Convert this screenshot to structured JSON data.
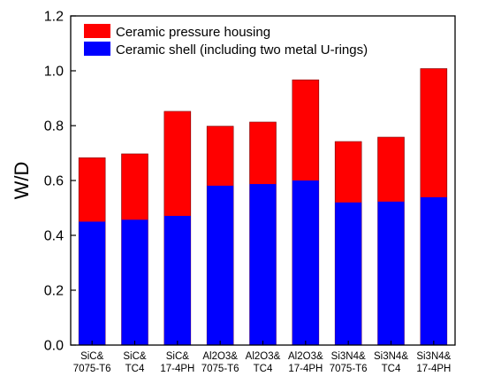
{
  "chart_data": {
    "type": "bar",
    "stacked": false,
    "overlay": true,
    "categories": [
      [
        "SiC&",
        "7075-T6"
      ],
      [
        "SiC&",
        "TC4"
      ],
      [
        "SiC&",
        "17-4PH"
      ],
      [
        "Al2O3&",
        "7075-T6"
      ],
      [
        "Al2O3&",
        "TC4"
      ],
      [
        "Al2O3&",
        "17-4PH"
      ],
      [
        "Si3N4&",
        "7075-T6"
      ],
      [
        "Si3N4&",
        "TC4"
      ],
      [
        "Si3N4&",
        "17-4PH"
      ]
    ],
    "series": [
      {
        "name": "Ceramic pressure housing",
        "color": "#ff0000",
        "values": [
          0.683,
          0.697,
          0.852,
          0.798,
          0.813,
          0.967,
          0.742,
          0.758,
          1.008
        ]
      },
      {
        "name": "Ceramic shell (including two metal U-rings)",
        "color": "#0000ff",
        "values": [
          0.45,
          0.457,
          0.471,
          0.581,
          0.587,
          0.6,
          0.52,
          0.523,
          0.539
        ]
      }
    ],
    "ylabel": "W/D",
    "xlabel": "",
    "ylim": [
      0,
      1.2
    ],
    "yticks": [
      "0.0",
      "0.2",
      "0.4",
      "0.6",
      "0.8",
      "1.0",
      "1.2"
    ],
    "legend_position": "top-left",
    "grid": false
  }
}
